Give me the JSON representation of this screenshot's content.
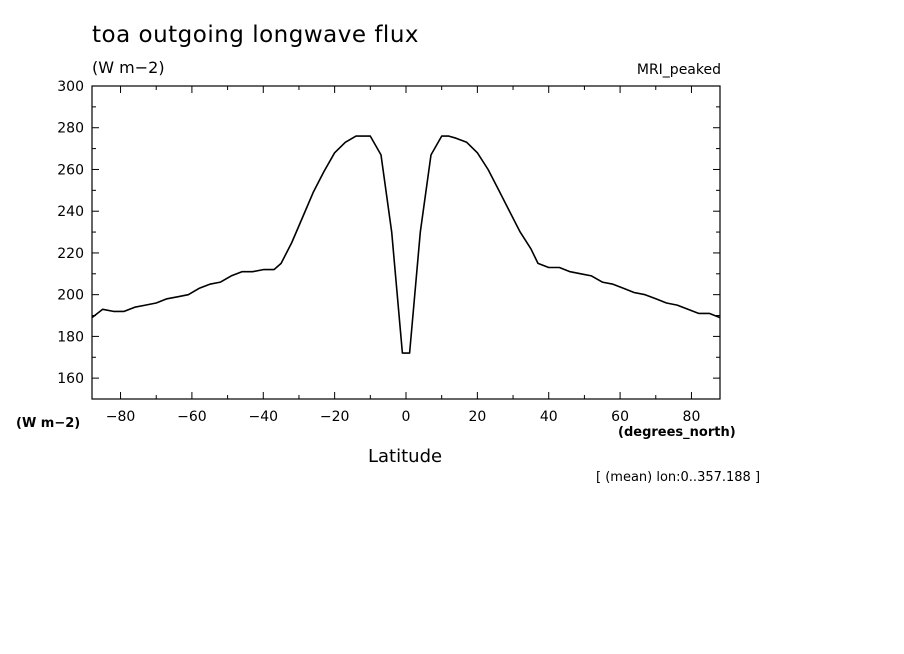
{
  "chart_data": {
    "type": "line",
    "title": "toa outgoing longwave flux",
    "units": "(W m−2)",
    "ylabel": "(W m−2)",
    "xlabel": "Latitude",
    "xunits": "(degrees_north)",
    "legend": "MRI_peaked",
    "note": "[ (mean) lon:0..357.188 ]",
    "xlim": [
      -88,
      88
    ],
    "ylim": [
      150,
      300
    ],
    "xticks": [
      -80,
      -60,
      -40,
      -20,
      0,
      20,
      40,
      60,
      80
    ],
    "yticks": [
      160,
      180,
      200,
      220,
      240,
      260,
      280,
      300
    ],
    "grid": false,
    "series": [
      {
        "x": [
          -88,
          -85,
          -82,
          -79,
          -76,
          -73,
          -70,
          -67,
          -64,
          -61,
          -58,
          -55,
          -52,
          -49,
          -46,
          -43,
          -40,
          -37,
          -35,
          -32,
          -29,
          -26,
          -23,
          -20,
          -17,
          -14,
          -12,
          -10,
          -7,
          -4,
          -1,
          1,
          4,
          7,
          10,
          12,
          14,
          17,
          20,
          23,
          26,
          29,
          32,
          35,
          37,
          40,
          43,
          46,
          49,
          52,
          55,
          58,
          61,
          64,
          67,
          70,
          73,
          76,
          79,
          82,
          85,
          88
        ],
        "y": [
          189,
          193,
          192,
          192,
          194,
          195,
          196,
          198,
          199,
          200,
          203,
          205,
          206,
          209,
          211,
          211,
          212,
          212,
          215,
          225,
          237,
          249,
          259,
          268,
          273,
          276,
          276,
          276,
          267,
          230,
          172,
          172,
          230,
          267,
          276,
          276,
          275,
          273,
          268,
          260,
          250,
          240,
          230,
          222,
          215,
          213,
          213,
          211,
          210,
          209,
          206,
          205,
          203,
          201,
          200,
          198,
          196,
          195,
          193,
          191,
          191,
          189
        ]
      }
    ]
  }
}
